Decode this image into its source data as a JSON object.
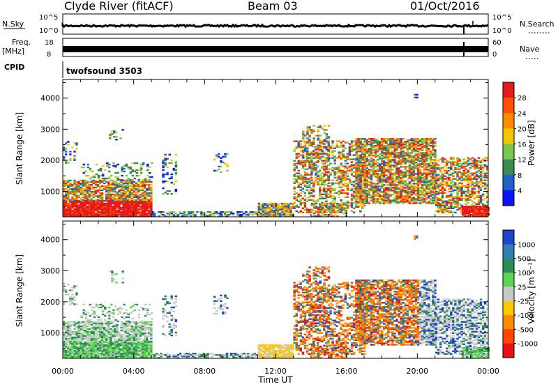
{
  "header": {
    "station": "Clyde River (fitACF)",
    "beam": "Beam 03",
    "date": "01/Oct/2016"
  },
  "top_panels": {
    "nsky_label": "N.Sky",
    "nsky_ticks": [
      "10^5",
      "10^0"
    ],
    "nsearch_label": "N.Search",
    "nsearch_ticks": [
      "10^5",
      "10^0"
    ],
    "freq_label": "Freq.",
    "freq_unit": "[MHz]",
    "freq_ticks": [
      "18",
      "8"
    ],
    "nave_label": "Nave",
    "nave_ticks": [
      "60",
      "0"
    ],
    "cpid_label": "CPID",
    "cpid_value": "twofsound 3503"
  },
  "chart_data": [
    {
      "type": "heatmap",
      "name": "power",
      "x_ticks": [
        "00:00",
        "04:00",
        "08:00",
        "12:00",
        "16:00",
        "20:00",
        "00:00"
      ],
      "xlim": [
        0,
        24
      ],
      "ylabel": "Slant Range [km]",
      "y_ticks": [
        "4000",
        "3000",
        "2000",
        "1000"
      ],
      "ylim": [
        180,
        4600
      ],
      "colorbar_label": "Power [dB]",
      "colorbar_ticks": [
        "28",
        "24",
        "20",
        "16",
        "12",
        "8",
        "4"
      ],
      "colorbar_colors": [
        "#e41a1c",
        "#ff5000",
        "#ff8c00",
        "#f0c800",
        "#78c850",
        "#3c8c50",
        "#1e64c8",
        "#0a14ff"
      ]
    },
    {
      "type": "heatmap",
      "name": "velocity",
      "x_ticks": [
        "00:00",
        "04:00",
        "08:00",
        "12:00",
        "16:00",
        "20:00",
        "00:00"
      ],
      "xlim": [
        0,
        24
      ],
      "xlabel": "Time UT",
      "ylabel": "Slant Range [km]",
      "y_ticks": [
        "4000",
        "3000",
        "2000",
        "1000"
      ],
      "ylim": [
        180,
        4600
      ],
      "colorbar_label": "Velocity [m s⁻¹]",
      "colorbar_ticks": [
        "1000",
        "500",
        "100",
        "25",
        "-25",
        "-100",
        "-500",
        "-1000"
      ],
      "colorbar_colors": [
        "#1e46c8",
        "#2e7fb8",
        "#2e8b57",
        "#5cd650",
        "#c8c8c8",
        "#ffc800",
        "#ff8c00",
        "#ff4500",
        "#e81010"
      ]
    }
  ]
}
